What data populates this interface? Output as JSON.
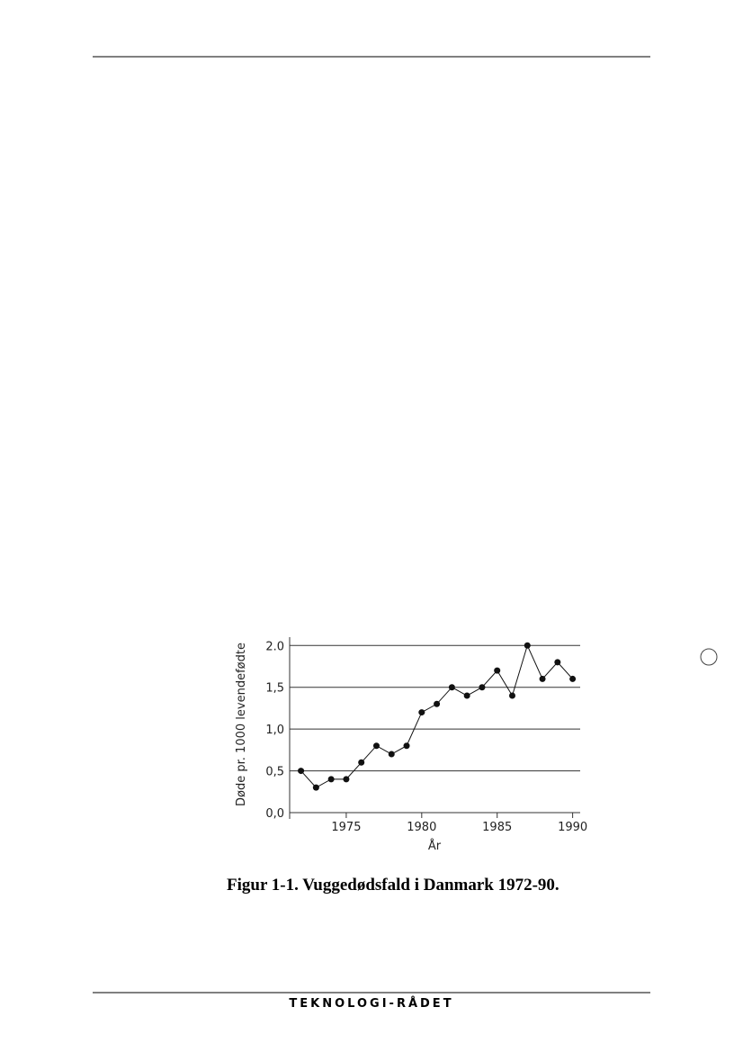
{
  "chart_data": {
    "type": "line",
    "y_label": "Døde pr. 1000 levendefødte",
    "x_label": "År",
    "x": [
      1972,
      1973,
      1974,
      1975,
      1976,
      1977,
      1978,
      1979,
      1980,
      1981,
      1982,
      1983,
      1984,
      1985,
      1986,
      1987,
      1988,
      1989,
      1990
    ],
    "values": [
      0.5,
      0.3,
      0.4,
      0.4,
      0.6,
      0.8,
      0.7,
      0.8,
      1.2,
      1.3,
      1.5,
      1.4,
      1.5,
      1.7,
      1.4,
      2.0,
      1.6,
      1.8,
      1.6
    ],
    "color": "#111111",
    "xlim": [
      1971.25,
      1990.5
    ],
    "xticks": [
      1975,
      1980,
      1985,
      1990
    ],
    "ylim": [
      0,
      2.1
    ],
    "yticks": [
      {
        "value": 0,
        "label": "0,0"
      },
      {
        "value": 0.5,
        "label": "0,5"
      },
      {
        "value": 1,
        "label": "1,0"
      },
      {
        "value": 1.5,
        "label": "1,5"
      },
      {
        "value": 2,
        "label": "2.0"
      }
    ],
    "grid": true
  },
  "caption": "Figur 1-1. Vuggedødsfald i Danmark 1972-90.",
  "footer": "TEKNOLOGI-RÅDET"
}
